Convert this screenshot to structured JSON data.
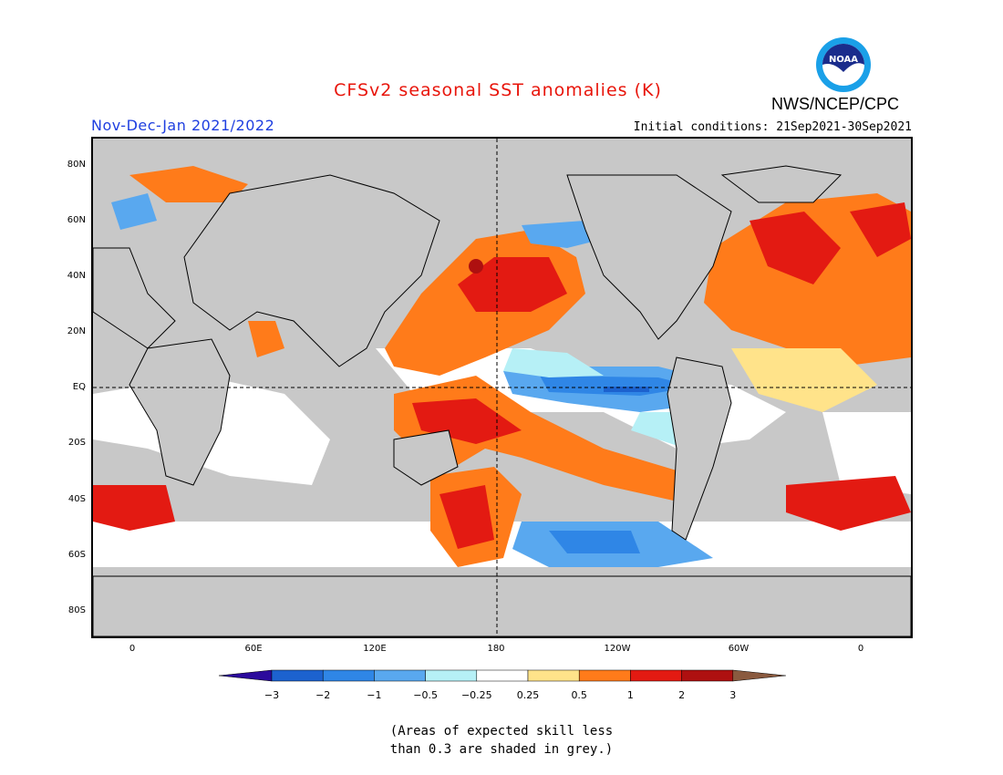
{
  "title": "CFSv2 seasonal SST anomalies (K)",
  "season": "Nov-Dec-Jan 2021/2022",
  "initial_conditions": "Initial conditions: 21Sep2021-30Sep2021",
  "agency": "NWS/NCEP/CPC",
  "logo_text": "NOAA",
  "lat_labels": [
    "80N",
    "60N",
    "40N",
    "20N",
    "EQ",
    "20S",
    "40S",
    "60S",
    "80S"
  ],
  "lon_labels": [
    "0",
    "60E",
    "120E",
    "180",
    "120W",
    "60W",
    "0"
  ],
  "colorbar": {
    "ticks": [
      "−3",
      "−2",
      "−1",
      "−0.5",
      "−0.25",
      "0.25",
      "0.5",
      "1",
      "2",
      "3"
    ],
    "colors": [
      "#2b0a9c",
      "#1c62cf",
      "#2f86e6",
      "#59a8ef",
      "#b6f0f6",
      "#ffffff",
      "#ffe38a",
      "#ff7b1a",
      "#e31a12",
      "#ae1010",
      "#8a5a3f"
    ]
  },
  "note_line1": "(Areas of expected skill less",
  "note_line2": "than 0.3 are shaded in grey.)",
  "colors": {
    "title": "#e8150b",
    "season": "#1f3fe0",
    "grey": "#c8c8c8"
  }
}
